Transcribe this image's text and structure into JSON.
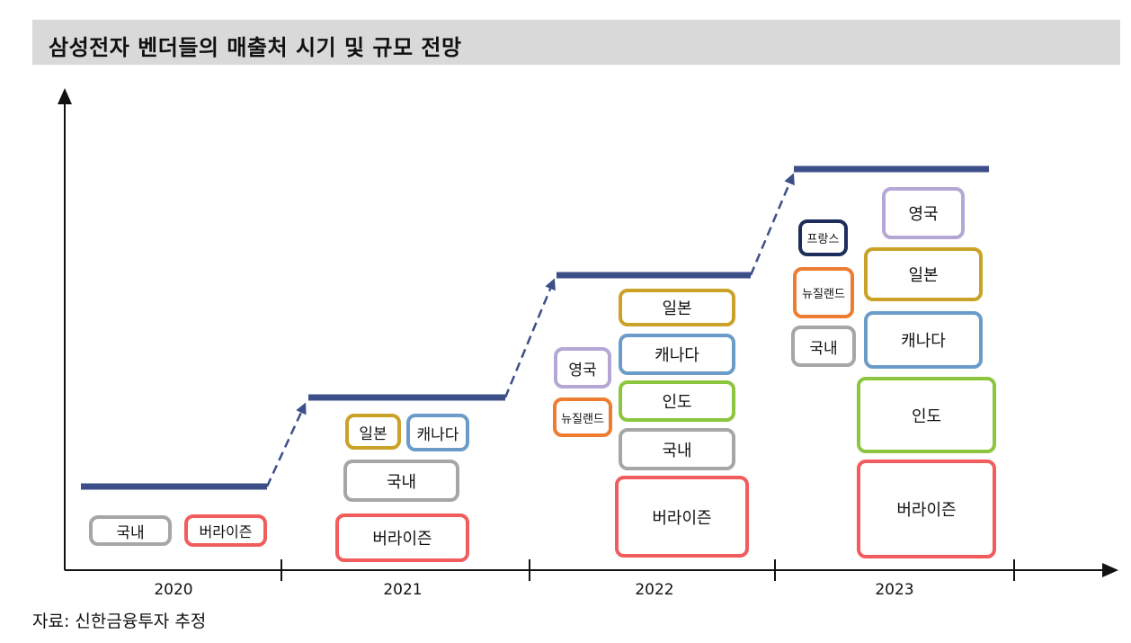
{
  "title": "삼성전자 벤더들의 매출처 시기 및 규모 전망",
  "source": "자료: 신한금융투자 추정",
  "colors": {
    "step_line": "#3d4f88",
    "axis": "#111111",
    "gray": "#a6a6a6",
    "red": "#f25c5c",
    "gold": "#c9a227",
    "blue": "#6b9cc9",
    "green": "#8cc63f",
    "lavender": "#b4a7d6",
    "orange": "#ee7d31",
    "navy": "#1f2d5c"
  },
  "years": [
    "2020",
    "2021",
    "2022",
    "2023"
  ],
  "labels": {
    "domestic": "국내",
    "verizon": "버라이즌",
    "japan": "일본",
    "canada": "캐나다",
    "india": "인도",
    "uk": "영국",
    "new_zealand": "뉴질랜드",
    "france": "프랑스"
  }
}
